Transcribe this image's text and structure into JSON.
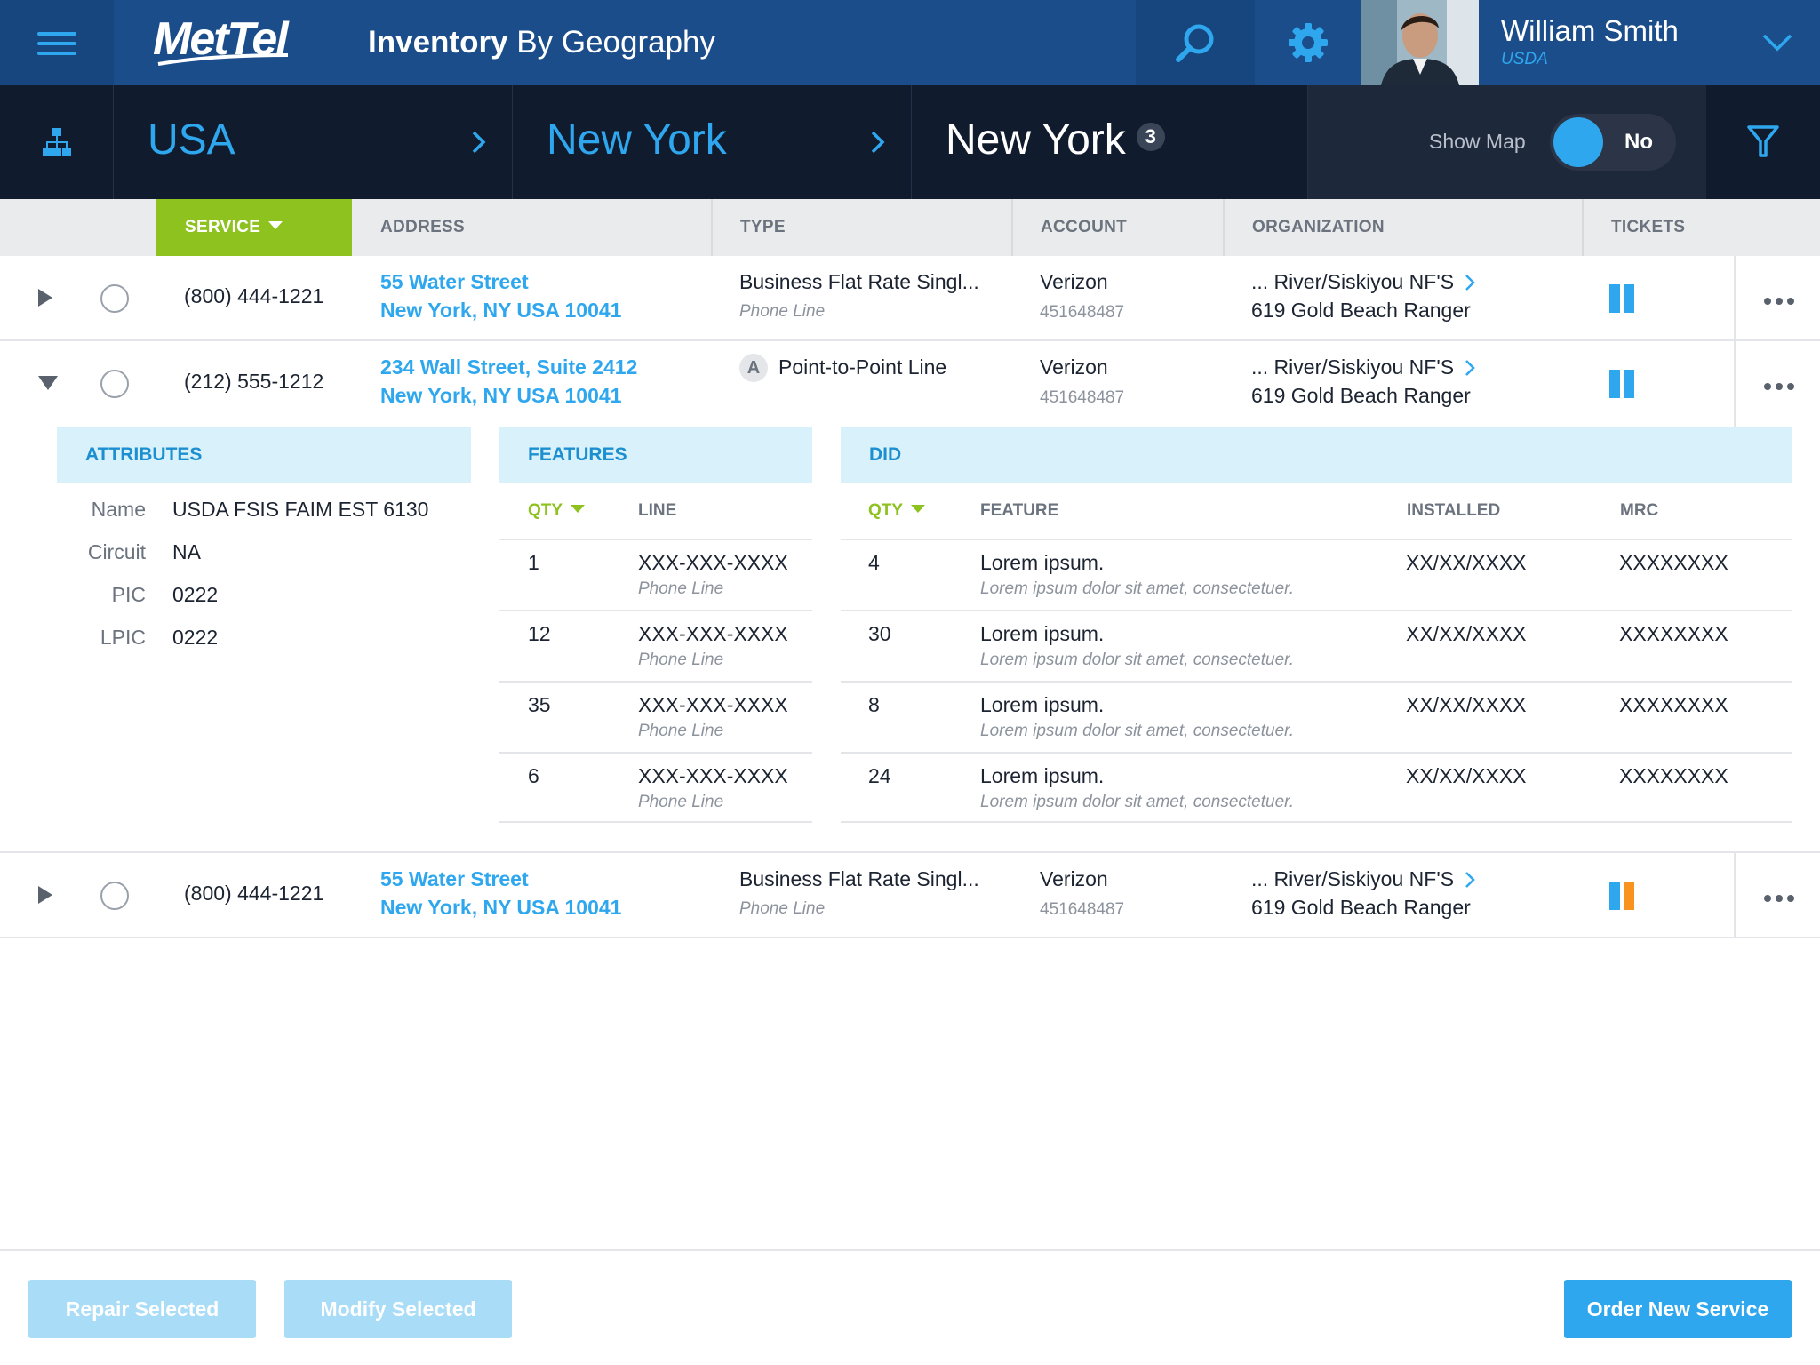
{
  "header": {
    "logo_text": "MetTel",
    "title_bold": "Inventory",
    "title_rest": " By Geography",
    "user_name": "William Smith",
    "user_org": "USDA",
    "colors": {
      "bar": "#1b4d8b",
      "accent": "#2ea7ef"
    }
  },
  "breadcrumb": {
    "items": [
      {
        "label": "USA"
      },
      {
        "label": "New York"
      },
      {
        "label": "New York",
        "count": "3"
      }
    ],
    "show_map_label": "Show Map",
    "show_map_value": "No"
  },
  "columns": {
    "service": "SERVICE",
    "address": "ADDRESS",
    "type": "TYPE",
    "account": "ACCOUNT",
    "organization": "ORGANIZATION",
    "tickets": "TICKETS"
  },
  "rows": [
    {
      "phone": "(800) 444-1221",
      "address_line1": "55 Water Street",
      "address_line2": "New York, NY USA 10041",
      "type_main": "Business Flat Rate Singl...",
      "type_sub": "Phone Line",
      "account_name": "Verizon",
      "account_number": "451648487",
      "org_line1": "... River/Siskiyou NF'S",
      "org_line2": "619 Gold Beach Ranger",
      "expanded": false,
      "ticket_colors": [
        "#2ea7ef",
        "#2ea7ef"
      ]
    },
    {
      "phone": "(212) 555-1212",
      "address_line1": "234 Wall Street, Suite 2412",
      "address_line2": "New York, NY USA 10041",
      "type_badge": "A",
      "type_main": "Point-to-Point Line",
      "account_name": "Verizon",
      "account_number": "451648487",
      "org_line1": "... River/Siskiyou NF'S",
      "org_line2": "619 Gold Beach Ranger",
      "expanded": true,
      "ticket_colors": [
        "#2ea7ef",
        "#2ea7ef"
      ]
    },
    {
      "phone": "(800) 444-1221",
      "address_line1": "55 Water Street",
      "address_line2": "New York, NY USA 10041",
      "type_main": "Business Flat Rate Singl...",
      "type_sub": "Phone Line",
      "account_name": "Verizon",
      "account_number": "451648487",
      "org_line1": "... River/Siskiyou NF'S",
      "org_line2": "619 Gold Beach Ranger",
      "expanded": false,
      "ticket_colors": [
        "#2ea7ef",
        "#f7931e"
      ]
    }
  ],
  "details": {
    "attributes": {
      "heading": "ATTRIBUTES",
      "items": [
        {
          "label": "Name",
          "value": "USDA FSIS FAIM EST 6130"
        },
        {
          "label": "Circuit",
          "value": "NA"
        },
        {
          "label": "PIC",
          "value": "0222"
        },
        {
          "label": "LPIC",
          "value": "0222"
        }
      ]
    },
    "features": {
      "heading": "FEATURES",
      "qty_header": "QTY",
      "line_header": "LINE",
      "rows": [
        {
          "qty": "1",
          "line": "XXX-XXX-XXXX",
          "sub": "Phone Line"
        },
        {
          "qty": "12",
          "line": "XXX-XXX-XXXX",
          "sub": "Phone Line"
        },
        {
          "qty": "35",
          "line": "XXX-XXX-XXXX",
          "sub": "Phone Line"
        },
        {
          "qty": "6",
          "line": "XXX-XXX-XXXX",
          "sub": "Phone Line"
        }
      ]
    },
    "did": {
      "heading": "DID",
      "qty_header": "QTY",
      "feature_header": "FEATURE",
      "installed_header": "INSTALLED",
      "mrc_header": "MRC",
      "rows": [
        {
          "qty": "4",
          "feature": "Lorem ipsum.",
          "desc": "Lorem ipsum dolor sit amet, consectetuer.",
          "installed": "XX/XX/XXXX",
          "mrc": "XXXXXXXX"
        },
        {
          "qty": "30",
          "feature": "Lorem ipsum.",
          "desc": "Lorem ipsum dolor sit amet, consectetuer.",
          "installed": "XX/XX/XXXX",
          "mrc": "XXXXXXXX"
        },
        {
          "qty": "8",
          "feature": "Lorem ipsum.",
          "desc": "Lorem ipsum dolor sit amet, consectetuer.",
          "installed": "XX/XX/XXXX",
          "mrc": "XXXXXXXX"
        },
        {
          "qty": "24",
          "feature": "Lorem ipsum.",
          "desc": "Lorem ipsum dolor sit amet, consectetuer.",
          "installed": "XX/XX/XXXX",
          "mrc": "XXXXXXXX"
        }
      ]
    }
  },
  "footer": {
    "repair_label": "Repair Selected",
    "modify_label": "Modify Selected",
    "order_label": "Order New Service"
  }
}
